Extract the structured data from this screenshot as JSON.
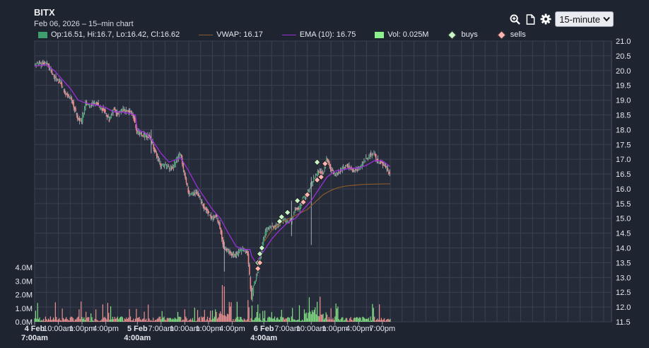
{
  "header": {
    "title": "BITX",
    "subtitle": "Feb 06, 2026 – 15–min chart"
  },
  "toolbar": {
    "icons": [
      "zoom-in-icon",
      "document-icon",
      "gear-icon"
    ],
    "interval_value": "15-minute"
  },
  "legend": {
    "ohlc": "Op:16.51, Hi:16.7, Lo:16.42, Cl:16.62",
    "vwap": "VWAP: 16.17",
    "ema": "EMA (10): 16.75",
    "vol": "Vol: 0.025M",
    "buys": "buys",
    "sells": "sells"
  },
  "colors": {
    "background": "#1f2431",
    "grid": "#3b4150",
    "up": "#3f9e6d",
    "down": "#f08a8a",
    "vwap": "#8a5a2a",
    "ema": "#9b2fd6",
    "vol_up": "#8cf08c",
    "vol_down": "#ff9b9b",
    "buy_marker": "#c8f5c8",
    "sell_marker": "#ffb3b3"
  },
  "chart_data": {
    "type": "candlestick",
    "price_axis": {
      "min": 11.5,
      "max": 21.0,
      "step": 0.5,
      "labels": [
        "11.5",
        "12.0",
        "12.5",
        "13.0",
        "13.5",
        "14.0",
        "14.5",
        "15.0",
        "15.5",
        "16.0",
        "16.5",
        "17.0",
        "17.5",
        "18.0",
        "18.5",
        "19.0",
        "19.5",
        "20.0",
        "20.5",
        "21.0"
      ]
    },
    "volume_axis": {
      "min": 0,
      "max": 4.0,
      "labels": [
        "0.0M",
        "1.0M",
        "2.0M",
        "3.0M",
        "4.0M"
      ]
    },
    "time_axis": {
      "min": 0,
      "max": 292,
      "ticks": [
        {
          "x": 0,
          "label": "4 Feb",
          "label2": "7:00am",
          "bold": true
        },
        {
          "x": 12,
          "label": "10:00am"
        },
        {
          "x": 24,
          "label": "1:00pm"
        },
        {
          "x": 36,
          "label": "4:00pm"
        },
        {
          "x": 52,
          "label": "5 Feb",
          "label2": "4:00am",
          "bold": true
        },
        {
          "x": 64,
          "label": "7:00am"
        },
        {
          "x": 76,
          "label": "10:00am"
        },
        {
          "x": 88,
          "label": "1:00pm"
        },
        {
          "x": 100,
          "label": "4:00pm"
        },
        {
          "x": 116,
          "label": "6 Feb",
          "label2": "4:00am",
          "bold": true
        },
        {
          "x": 128,
          "label": "7:00am"
        },
        {
          "x": 140,
          "label": "10:00am"
        },
        {
          "x": 152,
          "label": "1:00pm"
        },
        {
          "x": 164,
          "label": "4:00pm"
        },
        {
          "x": 176,
          "label": "7:00pm"
        }
      ]
    },
    "close_path": [
      [
        0,
        20.2
      ],
      [
        4,
        20.25
      ],
      [
        7,
        20.2
      ],
      [
        10,
        19.8
      ],
      [
        13,
        19.6
      ],
      [
        16,
        19.2
      ],
      [
        18,
        19.1
      ],
      [
        20,
        18.8
      ],
      [
        22,
        18.4
      ],
      [
        24,
        18.3
      ],
      [
        26,
        18.9
      ],
      [
        28,
        18.8
      ],
      [
        30,
        18.9
      ],
      [
        32,
        18.85
      ],
      [
        34,
        18.7
      ],
      [
        36,
        18.6
      ],
      [
        38,
        18.3
      ],
      [
        40,
        18.7
      ],
      [
        42,
        18.5
      ],
      [
        45,
        18.7
      ],
      [
        48,
        18.6
      ],
      [
        50,
        18.5
      ],
      [
        52,
        17.9
      ],
      [
        55,
        17.8
      ],
      [
        58,
        17.75
      ],
      [
        60,
        17.5
      ],
      [
        62,
        17.1
      ],
      [
        64,
        16.8
      ],
      [
        66,
        16.8
      ],
      [
        68,
        16.7
      ],
      [
        70,
        16.7
      ],
      [
        72,
        17.0
      ],
      [
        74,
        17.2
      ],
      [
        76,
        16.5
      ],
      [
        78,
        15.9
      ],
      [
        80,
        15.8
      ],
      [
        82,
        15.9
      ],
      [
        84,
        15.6
      ],
      [
        86,
        15.4
      ],
      [
        88,
        15.2
      ],
      [
        90,
        15.0
      ],
      [
        92,
        15.1
      ],
      [
        94,
        14.7
      ],
      [
        96,
        14.0
      ],
      [
        98,
        13.9
      ],
      [
        100,
        13.8
      ],
      [
        102,
        13.75
      ],
      [
        104,
        13.9
      ],
      [
        106,
        14.0
      ],
      [
        108,
        13.8
      ],
      [
        110,
        12.3
      ],
      [
        111,
        12.7
      ],
      [
        113,
        13.2
      ],
      [
        114,
        13.6
      ],
      [
        116,
        14.3
      ],
      [
        118,
        14.7
      ],
      [
        120,
        14.7
      ],
      [
        122,
        14.7
      ],
      [
        124,
        14.8
      ],
      [
        126,
        15.0
      ],
      [
        128,
        14.9
      ],
      [
        130,
        14.9
      ],
      [
        132,
        15.3
      ],
      [
        134,
        15.3
      ],
      [
        136,
        15.7
      ],
      [
        138,
        15.8
      ],
      [
        140,
        16.1
      ],
      [
        142,
        16.4
      ],
      [
        144,
        16.6
      ],
      [
        146,
        16.5
      ],
      [
        148,
        17.0
      ],
      [
        150,
        16.7
      ],
      [
        152,
        16.5
      ],
      [
        154,
        16.55
      ],
      [
        156,
        16.7
      ],
      [
        158,
        16.8
      ],
      [
        160,
        16.7
      ],
      [
        162,
        16.6
      ],
      [
        164,
        16.7
      ],
      [
        166,
        16.8
      ],
      [
        168,
        17.0
      ],
      [
        170,
        17.15
      ],
      [
        172,
        17.2
      ],
      [
        174,
        16.9
      ],
      [
        176,
        16.85
      ],
      [
        178,
        16.7
      ],
      [
        180,
        16.5
      ]
    ],
    "wick_spikes": [
      {
        "x": 59,
        "high": 18.0,
        "low": 17.2
      },
      {
        "x": 96,
        "high": 14.2,
        "low": 13.2
      },
      {
        "x": 130,
        "high": 15.6,
        "low": 14.4
      },
      {
        "x": 140,
        "high": 16.4,
        "low": 14.1
      }
    ],
    "ema_path": [
      [
        0,
        20.15
      ],
      [
        6,
        20.2
      ],
      [
        10,
        20.0
      ],
      [
        14,
        19.7
      ],
      [
        18,
        19.4
      ],
      [
        22,
        19.0
      ],
      [
        26,
        18.9
      ],
      [
        30,
        18.85
      ],
      [
        36,
        18.75
      ],
      [
        40,
        18.6
      ],
      [
        44,
        18.6
      ],
      [
        48,
        18.55
      ],
      [
        51,
        18.5
      ],
      [
        52,
        18.0
      ],
      [
        56,
        17.9
      ],
      [
        60,
        17.6
      ],
      [
        64,
        17.2
      ],
      [
        68,
        16.9
      ],
      [
        72,
        17.0
      ],
      [
        74,
        17.05
      ],
      [
        78,
        16.6
      ],
      [
        82,
        16.1
      ],
      [
        86,
        15.7
      ],
      [
        90,
        15.3
      ],
      [
        94,
        15.0
      ],
      [
        98,
        14.5
      ],
      [
        102,
        14.05
      ],
      [
        106,
        13.95
      ],
      [
        109,
        13.95
      ],
      [
        110,
        13.7
      ],
      [
        112,
        13.5
      ],
      [
        116,
        13.9
      ],
      [
        120,
        14.3
      ],
      [
        124,
        14.6
      ],
      [
        128,
        14.85
      ],
      [
        132,
        15.0
      ],
      [
        136,
        15.3
      ],
      [
        140,
        15.6
      ],
      [
        144,
        16.0
      ],
      [
        148,
        16.4
      ],
      [
        152,
        16.6
      ],
      [
        156,
        16.65
      ],
      [
        160,
        16.7
      ],
      [
        164,
        16.7
      ],
      [
        168,
        16.8
      ],
      [
        172,
        16.95
      ],
      [
        176,
        16.95
      ],
      [
        180,
        16.75
      ]
    ],
    "vwap_path": [
      [
        116,
        14.2
      ],
      [
        120,
        14.6
      ],
      [
        126,
        14.9
      ],
      [
        132,
        15.1
      ],
      [
        138,
        15.3
      ],
      [
        142,
        15.55
      ],
      [
        146,
        15.8
      ],
      [
        150,
        15.95
      ],
      [
        154,
        16.05
      ],
      [
        158,
        16.1
      ],
      [
        162,
        16.12
      ],
      [
        166,
        16.15
      ],
      [
        172,
        16.16
      ],
      [
        180,
        16.17
      ]
    ],
    "volume_spikes": [
      {
        "x": 95,
        "v": 2.7
      },
      {
        "x": 96,
        "v": 2.6
      },
      {
        "x": 108,
        "v": 1.6
      },
      {
        "x": 110,
        "v": 1.2
      },
      {
        "x": 139,
        "v": 1.8
      },
      {
        "x": 150,
        "v": 1.0
      }
    ],
    "buys": [
      [
        113,
        13.5
      ],
      [
        114,
        13.8
      ],
      [
        115,
        14.0
      ],
      [
        124,
        14.9
      ],
      [
        125,
        15.05
      ],
      [
        128,
        15.2
      ],
      [
        133,
        15.6
      ],
      [
        143,
        16.9
      ]
    ],
    "sells": [
      [
        113,
        13.3
      ],
      [
        114,
        13.5
      ],
      [
        136,
        15.55
      ],
      [
        138,
        15.8
      ],
      [
        143,
        16.3
      ],
      [
        145,
        16.4
      ],
      [
        147,
        16.85
      ]
    ],
    "last_close": 16.62,
    "last_vwap": 16.17,
    "last_ema": 16.75,
    "last_volume_m": 0.025
  }
}
